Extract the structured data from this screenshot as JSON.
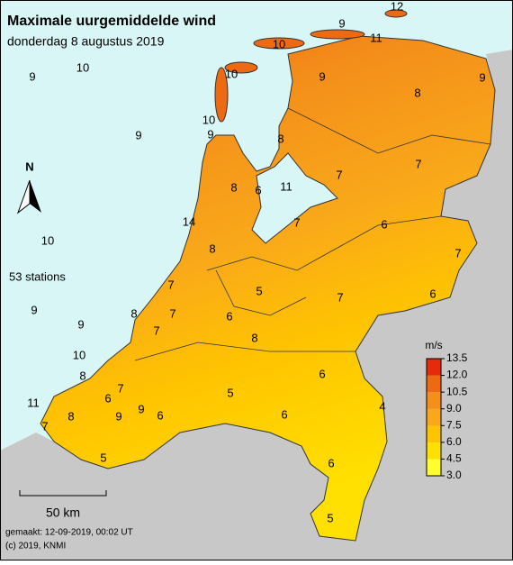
{
  "header": {
    "title": "Maximale uurgemiddelde wind",
    "subtitle": "donderdag 8 augustus 2019"
  },
  "station_count": "53 stations",
  "stations": [
    12,
    9,
    10,
    11,
    9,
    10,
    10,
    9,
    9,
    8,
    10,
    9,
    9,
    8,
    7,
    7,
    8,
    6,
    11,
    14,
    7,
    10,
    6,
    7,
    8,
    7,
    5,
    7,
    6,
    9,
    8,
    7,
    9,
    6,
    7,
    8,
    10,
    8,
    7,
    6,
    6,
    5,
    11,
    9,
    4,
    6,
    6,
    7,
    8,
    9,
    6,
    5,
    5
  ],
  "legend": {
    "unit": "m/s",
    "ticks": [
      {
        "value": 3.0,
        "label": "3.0"
      },
      {
        "value": 4.5,
        "label": "4.5"
      },
      {
        "value": 6.0,
        "label": "6.0"
      },
      {
        "value": 7.5,
        "label": "7.5"
      },
      {
        "value": 9.0,
        "label": "9.0"
      },
      {
        "value": 10.5,
        "label": "10.5"
      },
      {
        "value": 12.0,
        "label": "12.0"
      },
      {
        "value": 13.5,
        "label": "13.5"
      }
    ],
    "colors": [
      "#ffff30",
      "#ffe000",
      "#ffc400",
      "#f9a81a",
      "#f4901a",
      "#ee6a12",
      "#e52b0a"
    ]
  },
  "north": "N",
  "scale": "50 km",
  "footer": {
    "made": "gemaakt: 12-09-2019, 00:02 UT",
    "copyright": "(c) 2019, KNMI"
  }
}
